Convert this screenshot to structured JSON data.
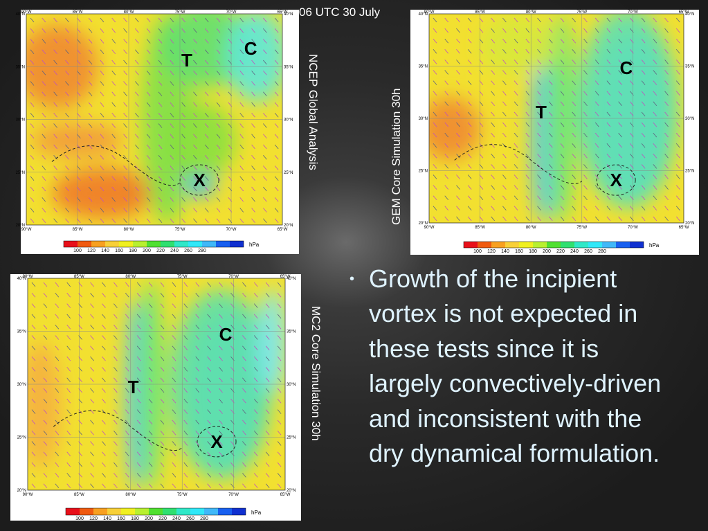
{
  "header": {
    "title": "06 UTC 30 July"
  },
  "panels": [
    {
      "caption": "NCEP Global Analysis",
      "markers": [
        "T",
        "C",
        "X"
      ]
    },
    {
      "caption": "GEM Core Simulation 30h",
      "markers": [
        "C",
        "T",
        "X"
      ]
    },
    {
      "caption": "MC2 Core Simulation 30h",
      "markers": [
        "C",
        "T",
        "X"
      ]
    }
  ],
  "map_axes": {
    "lon": [
      "90°W",
      "85°W",
      "80°W",
      "75°W",
      "70°W",
      "65°W"
    ],
    "lat": [
      "40°N",
      "35°N",
      "30°N",
      "25°N",
      "20°N"
    ]
  },
  "colorbar": {
    "ticks": [
      "100",
      "120",
      "140",
      "160",
      "180",
      "200",
      "220",
      "240",
      "260",
      "280"
    ],
    "unit": "hPa"
  },
  "bullet": {
    "marker": "•",
    "text": "Growth of the incipient vortex is not expected in these tests since it is largely convectively-driven and inconsistent with the dry dynamical formulation."
  }
}
